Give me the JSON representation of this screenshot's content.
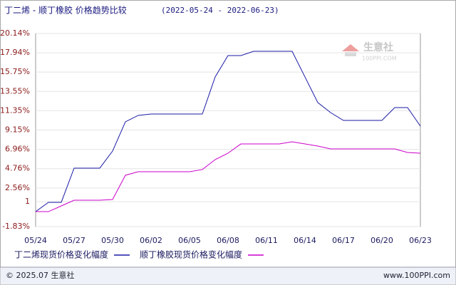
{
  "chart_data": {
    "type": "line",
    "title": "丁二烯 - 顺丁橡胶 价格趋势比较",
    "subtitle": "(2022-05-24 - 2022-06-23)",
    "categories": [
      "05/24",
      null,
      null,
      "05/27",
      null,
      null,
      "05/30",
      null,
      null,
      "06/02",
      null,
      null,
      "06/05",
      null,
      null,
      "06/08",
      null,
      null,
      "06/11",
      null,
      null,
      "06/14",
      null,
      null,
      "06/17",
      null,
      null,
      "06/20",
      null,
      null,
      "06/23"
    ],
    "ylim": [
      -1.83,
      20.14
    ],
    "yticks": [
      {
        "value": -1.83,
        "label": "-1.83%"
      },
      1,
      {
        "value": 2.56,
        "label": "2.56%"
      },
      {
        "value": 4.76,
        "label": "4.76%"
      },
      {
        "value": 6.96,
        "label": "6.96%"
      },
      {
        "value": 9.15,
        "label": "9.15%"
      },
      {
        "value": 11.35,
        "label": "11.35%"
      },
      {
        "value": 13.55,
        "label": "13.55%"
      },
      {
        "value": 15.75,
        "label": "15.75%"
      },
      {
        "value": 17.94,
        "label": "17.94%"
      },
      {
        "value": 20.14,
        "label": "20.14%"
      }
    ],
    "grid": true,
    "series": [
      {
        "name": "丁二烯现货价格变化幅度",
        "color": "#1a1aa6",
        "values": [
          -0.13,
          0.93,
          0.93,
          4.82,
          4.82,
          4.82,
          6.76,
          10.09,
          10.82,
          10.98,
          10.98,
          10.98,
          10.98,
          10.98,
          15.2,
          17.63,
          17.63,
          18.11,
          18.11,
          18.11,
          18.11,
          15.2,
          12.28,
          11.14,
          10.25,
          10.25,
          10.25,
          10.25,
          11.71,
          11.71,
          9.6
        ]
      },
      {
        "name": "顺丁橡胶现货价格变化幅度",
        "color": "#cc00cc",
        "values": [
          -0.13,
          -0.13,
          0.52,
          1.17,
          1.17,
          1.17,
          1.25,
          4.01,
          4.41,
          4.41,
          4.41,
          4.41,
          4.41,
          4.66,
          5.79,
          6.52,
          7.57,
          7.57,
          7.57,
          7.57,
          7.82,
          7.57,
          7.33,
          7.01,
          7.01,
          7.01,
          7.01,
          7.01,
          7.01,
          6.6,
          6.52
        ]
      }
    ]
  },
  "watermark": {
    "name": "生意社",
    "url": "100PPI.COM"
  },
  "footer": {
    "copyright": "© 2025.07 生意社",
    "site": "www.100PPI.com"
  }
}
